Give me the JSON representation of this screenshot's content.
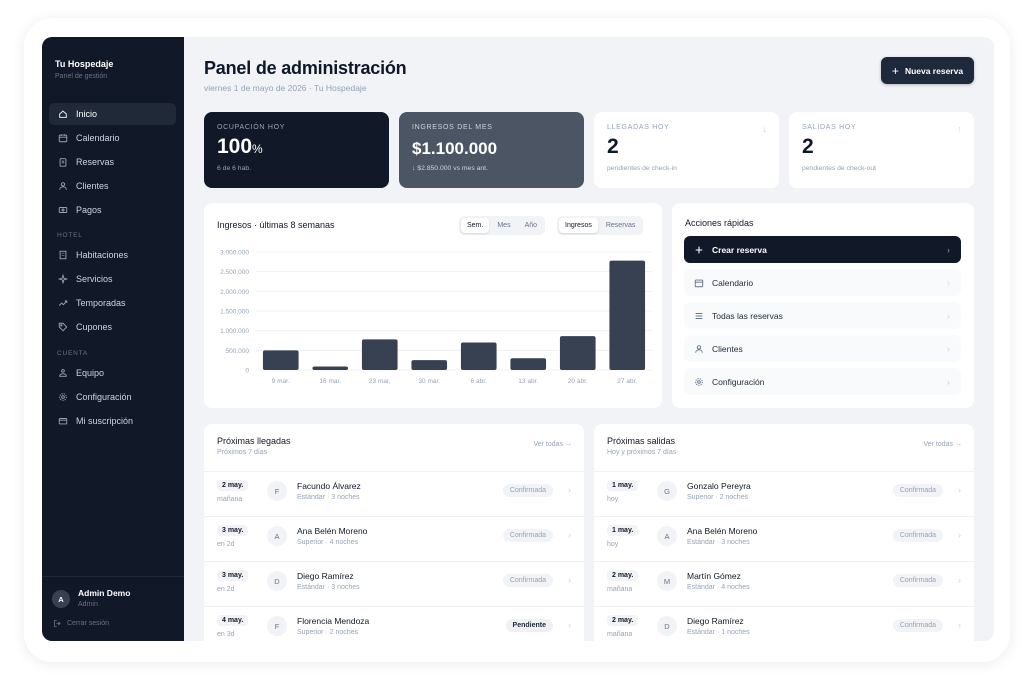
{
  "sidebar": {
    "brand": "Tu Hospedaje",
    "brand_sub": "Panel de gestión",
    "items": [
      {
        "label": "Inicio",
        "icon": "home-icon",
        "active": true
      },
      {
        "label": "Calendario",
        "icon": "calendar-icon"
      },
      {
        "label": "Reservas",
        "icon": "clipboard-icon"
      },
      {
        "label": "Clientes",
        "icon": "users-icon"
      },
      {
        "label": "Pagos",
        "icon": "payments-icon"
      }
    ],
    "section_hotel": "HOTEL",
    "hotel_items": [
      {
        "label": "Habitaciones",
        "icon": "building-icon"
      },
      {
        "label": "Servicios",
        "icon": "sparkle-icon"
      },
      {
        "label": "Temporadas",
        "icon": "trend-icon"
      },
      {
        "label": "Cupones",
        "icon": "tag-icon"
      }
    ],
    "section_account": "CUENTA",
    "account_items": [
      {
        "label": "Equipo",
        "icon": "team-icon"
      },
      {
        "label": "Configuración",
        "icon": "gear-icon"
      },
      {
        "label": "Mi suscripción",
        "icon": "card-icon"
      }
    ],
    "user": {
      "initial": "A",
      "name": "Admin Demo",
      "role": "Admin"
    },
    "logout": "Cerrar sesión"
  },
  "header": {
    "title": "Panel de administración",
    "subtitle": "viernes 1 de mayo de 2026 · Tu Hospedaje",
    "new_button": "Nueva reserva"
  },
  "stats": [
    {
      "label": "OCUPACIÓN HOY",
      "value": "100",
      "unit": "%",
      "note": "6 de 6 hab."
    },
    {
      "label": "INGRESOS DEL MES",
      "value": "$1.100.000",
      "note": "↓ $2.850.000 vs mes ant."
    },
    {
      "label": "LLEGADAS HOY",
      "value": "2",
      "note": "pendientes de check-in",
      "arrow": "↓"
    },
    {
      "label": "SALIDAS HOY",
      "value": "2",
      "note": "pendientes de check-out",
      "arrow": "↑"
    }
  ],
  "chart_panel": {
    "title": "Ingresos · últimas 8 semanas",
    "period_tabs": [
      {
        "label": "Sem.",
        "active": true
      },
      {
        "label": "Mes"
      },
      {
        "label": "Año"
      }
    ],
    "metric_tabs": [
      {
        "label": "Ingresos",
        "active": true
      },
      {
        "label": "Reservas"
      }
    ]
  },
  "chart_data": {
    "type": "bar",
    "categories": [
      "9 mar.",
      "16 mar.",
      "23 mar.",
      "30 mar.",
      "6 abr.",
      "13 abr.",
      "20 abr.",
      "27 abr."
    ],
    "values": [
      500000,
      90000,
      780000,
      250000,
      700000,
      300000,
      860000,
      2780000
    ],
    "ylim": [
      0,
      3000000
    ],
    "yticks": [
      "3.000.000",
      "2.500.000",
      "2.000.000",
      "1.500.000",
      "1.000.000",
      "500.000",
      "0"
    ],
    "ytick_values": [
      3000000,
      2500000,
      2000000,
      1500000,
      1000000,
      500000,
      0
    ],
    "grid": true,
    "bar_color": "#374151"
  },
  "quick_actions": {
    "title": "Acciones rápidas",
    "items": [
      {
        "label": "Crear reserva",
        "icon": "plus-icon",
        "primary": true
      },
      {
        "label": "Calendario",
        "icon": "calendar-icon"
      },
      {
        "label": "Todas las reservas",
        "icon": "list-icon"
      },
      {
        "label": "Clientes",
        "icon": "users-icon"
      },
      {
        "label": "Configuración",
        "icon": "gear-icon"
      }
    ]
  },
  "arrivals": {
    "title": "Próximas llegadas",
    "subtitle": "Próximos 7 días",
    "link": "Ver todas →",
    "rows": [
      {
        "date": "2 may.",
        "when": "mañana",
        "initial": "F",
        "name": "Facundo Álvarez",
        "room": "Estándar · 3 noches",
        "status": "Confirmada"
      },
      {
        "date": "3 may.",
        "when": "en 2d",
        "initial": "A",
        "name": "Ana Belén Moreno",
        "room": "Superior · 4 noches",
        "status": "Confirmada"
      },
      {
        "date": "3 may.",
        "when": "en 2d",
        "initial": "D",
        "name": "Diego Ramírez",
        "room": "Estándar · 3 noches",
        "status": "Confirmada"
      },
      {
        "date": "4 may.",
        "when": "en 3d",
        "initial": "F",
        "name": "Florencia Mendoza",
        "room": "Superior · 2 noches",
        "status": "Pendiente"
      }
    ]
  },
  "departures": {
    "title": "Próximas salidas",
    "subtitle": "Hoy y próximos 7 días",
    "link": "Ver todas →",
    "rows": [
      {
        "date": "1 may.",
        "when": "hoy",
        "initial": "G",
        "name": "Gonzalo Pereyra",
        "room": "Superior · 2 noches",
        "status": "Confirmada"
      },
      {
        "date": "1 may.",
        "when": "hoy",
        "initial": "A",
        "name": "Ana Belén Moreno",
        "room": "Estándar · 3 noches",
        "status": "Confirmada"
      },
      {
        "date": "2 may.",
        "when": "mañana",
        "initial": "M",
        "name": "Martín Gómez",
        "room": "Estándar · 4 noches",
        "status": "Confirmada"
      },
      {
        "date": "2 may.",
        "when": "mañana",
        "initial": "D",
        "name": "Diego Ramírez",
        "room": "Estándar · 1 noches",
        "status": "Confirmada"
      }
    ]
  }
}
